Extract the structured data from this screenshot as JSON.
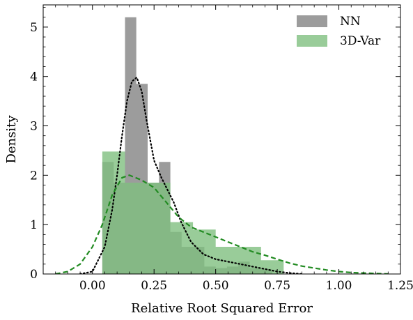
{
  "chart_data": {
    "type": "histogram",
    "xlabel": "Relative Root Squared Error",
    "ylabel": "Density",
    "xlim": [
      -0.2,
      1.25
    ],
    "ylim": [
      0,
      5.45
    ],
    "xticks": [
      0.0,
      0.25,
      0.5,
      0.75,
      1.0,
      1.25
    ],
    "xtick_labels": [
      "0.00",
      "0.25",
      "0.50",
      "0.75",
      "1.00",
      "1.25"
    ],
    "yticks": [
      0,
      1,
      2,
      3,
      4,
      5
    ],
    "ytick_labels": [
      "0",
      "1",
      "2",
      "3",
      "4",
      "5"
    ],
    "legend_position": "top-right",
    "series": [
      {
        "name": "NN",
        "kind": "histogram",
        "color": "#808080",
        "bin_edges": [
          0.04,
          0.086,
          0.132,
          0.178,
          0.224,
          0.27,
          0.316,
          0.362,
          0.408,
          0.454,
          0.5,
          0.546,
          0.592,
          0.638,
          0.684,
          0.73
        ],
        "density": [
          2.27,
          1.85,
          5.2,
          3.85,
          1.85,
          2.27,
          0.85,
          0.55,
          0.55,
          0.15,
          0.12,
          0.15,
          0.25,
          0.12,
          0.1
        ]
      },
      {
        "name": "3D-Var",
        "kind": "histogram",
        "color": "#7fbf7f",
        "bin_edges": [
          0.04,
          0.132,
          0.224,
          0.316,
          0.408,
          0.5,
          0.592,
          0.684,
          0.776
        ],
        "density": [
          2.48,
          1.85,
          1.85,
          1.05,
          0.9,
          0.55,
          0.55,
          0.28
        ]
      }
    ],
    "kde_curves": [
      {
        "for": "NN",
        "style": "dotted",
        "color": "#000000",
        "x": [
          -0.05,
          0.0,
          0.05,
          0.08,
          0.1,
          0.12,
          0.14,
          0.16,
          0.18,
          0.2,
          0.22,
          0.25,
          0.28,
          0.3,
          0.33,
          0.36,
          0.4,
          0.45,
          0.5,
          0.55,
          0.6,
          0.65,
          0.7,
          0.75,
          0.8,
          0.85
        ],
        "y": [
          0.0,
          0.05,
          0.55,
          1.3,
          2.0,
          2.8,
          3.5,
          3.9,
          3.98,
          3.7,
          3.1,
          2.3,
          1.95,
          1.75,
          1.45,
          1.05,
          0.65,
          0.4,
          0.3,
          0.25,
          0.2,
          0.15,
          0.1,
          0.05,
          0.02,
          0.0
        ]
      },
      {
        "for": "3D-Var",
        "style": "dashed",
        "color": "#228b22",
        "x": [
          -0.15,
          -0.1,
          -0.05,
          0.0,
          0.04,
          0.08,
          0.12,
          0.15,
          0.2,
          0.25,
          0.3,
          0.35,
          0.4,
          0.45,
          0.5,
          0.55,
          0.6,
          0.65,
          0.7,
          0.75,
          0.8,
          0.85,
          0.9,
          0.95,
          1.0,
          1.05,
          1.1,
          1.15,
          1.2
        ],
        "y": [
          0.0,
          0.05,
          0.2,
          0.55,
          1.0,
          1.6,
          1.95,
          2.0,
          1.9,
          1.75,
          1.45,
          1.15,
          0.95,
          0.85,
          0.75,
          0.65,
          0.55,
          0.45,
          0.38,
          0.3,
          0.22,
          0.16,
          0.12,
          0.08,
          0.05,
          0.03,
          0.02,
          0.01,
          0.0
        ]
      }
    ]
  }
}
